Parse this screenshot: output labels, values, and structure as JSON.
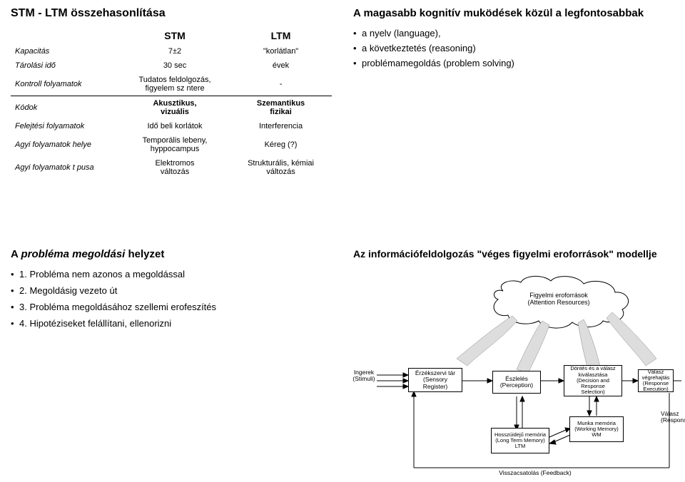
{
  "q1": {
    "title": "STM - LTM összehasonlítása",
    "col_stm": "STM",
    "col_ltm": "LTM",
    "rows": [
      {
        "label": "Kapacitás",
        "stm": "7±2",
        "ltm": "\"korlátlan\""
      },
      {
        "label": "Tárolási idő",
        "stm": "30 sec",
        "ltm": "évek"
      },
      {
        "label": "Kontroll folyamatok",
        "stm": "Tudatos feldolgozás,\nfigyelem sz ntere",
        "ltm": "-"
      },
      {
        "label": "Kódok",
        "stm": "Akusztikus,\nvizuális",
        "stm_bold": true,
        "ltm": "Szemantikus\nfizikai",
        "ltm_bold": true
      },
      {
        "label": "Felejtési folyamatok",
        "stm": "Idő beli korlátok",
        "ltm": "Interferencia"
      },
      {
        "label": "Agyi folyamatok helye",
        "stm": "Temporális lebeny,\nhyppocampus",
        "ltm": "Kéreg (?)"
      },
      {
        "label": "Agyi folyamatok t pusa",
        "stm": "Elektromos\nváltozás",
        "ltm": "Strukturális, kémiai\nváltozás"
      }
    ],
    "divider_after": 2
  },
  "q2": {
    "title": "A magasabb kognitív muködések közül a legfontosabbak",
    "items": [
      "a nyelv (language),",
      "a következtetés (reasoning)",
      "problémamegoldás (problem solving)"
    ]
  },
  "q3": {
    "title": "A probléma megoldási helyzet",
    "title_parts": {
      "a": "A ",
      "b": "probléma megoldási",
      "c": " helyzet"
    },
    "items": [
      "1. Probléma nem azonos a megoldással",
      "2. Megoldásig vezeto út",
      "3. Probléma megoldásához szellemi erofeszítés",
      "4. Hipotéziseket felállítani, ellenorizni"
    ]
  },
  "q4": {
    "title": "Az információfeldolgozás \"véges figyelmi eroforrások\" modellje",
    "cloud_label": "Figyelmi eroforrások\n(Attention Resources)",
    "ingerek": "Ingerek\n(Stimuli)",
    "erzekszervi": "Érzékszervi tár\n(Sensory Register)",
    "eszleles": "Észlelés\n(Perception)",
    "dontes": "Döntés és a válasz\nkiválasztása\n(Decision and Response\nSelection)",
    "vegrehajtas": "Válasz végrehajtás\n(Response Execution)",
    "ltm": "Hosszúidejű memória\n(Long Term Memory)\nLTM",
    "wm": "Munka memória\n(Working Memory)\nWM",
    "valasz": "Válasz\n(Respons",
    "feedback": "Visszacsatolás (Feedback)",
    "colors": {
      "line": "#000000",
      "fill_cloud": "#eeeeee",
      "arrow_fill": "#dddddd"
    }
  }
}
